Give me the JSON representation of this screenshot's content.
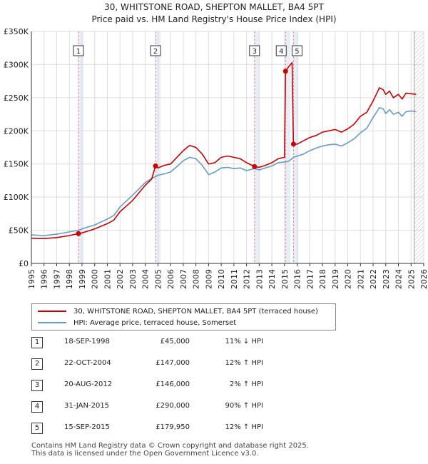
{
  "header": {
    "title": "30, WHITSTONE ROAD, SHEPTON MALLET, BA4 5PT",
    "subtitle": "Price paid vs. HM Land Registry's House Price Index (HPI)"
  },
  "colors": {
    "property": "#cc0000",
    "hpi": "#6699cc",
    "band": "#e8eef7",
    "vline": "#e88a8a",
    "grid": "#dddddd"
  },
  "chart_data": {
    "type": "line",
    "title": "Price paid vs. HM Land Registry's House Price Index (HPI)",
    "xlabel": "",
    "ylabel": "",
    "xlim": [
      1995,
      2026
    ],
    "ylim": [
      0,
      350000
    ],
    "y_ticks": [
      {
        "value": 0,
        "label": "£0"
      },
      {
        "value": 50000,
        "label": "£50K"
      },
      {
        "value": 100000,
        "label": "£100K"
      },
      {
        "value": 150000,
        "label": "£150K"
      },
      {
        "value": 200000,
        "label": "£200K"
      },
      {
        "value": 250000,
        "label": "£250K"
      },
      {
        "value": 300000,
        "label": "£300K"
      },
      {
        "value": 350000,
        "label": "£350K"
      }
    ],
    "x_ticks": [
      "1995",
      "1996",
      "1997",
      "1998",
      "1999",
      "2000",
      "2001",
      "2002",
      "2003",
      "2004",
      "2005",
      "2006",
      "2007",
      "2008",
      "2009",
      "2010",
      "2011",
      "2012",
      "2013",
      "2014",
      "2015",
      "2016",
      "2017",
      "2018",
      "2019",
      "2020",
      "2021",
      "2022",
      "2023",
      "2024",
      "2025",
      "2026"
    ],
    "grid": true,
    "series": [
      {
        "name": "30, WHITSTONE ROAD, SHEPTON MALLET, BA4 5PT (terraced house)",
        "color": "#cc0000",
        "points": [
          [
            1995.0,
            38000
          ],
          [
            1996.0,
            37500
          ],
          [
            1997.0,
            39000
          ],
          [
            1998.0,
            42000
          ],
          [
            1998.72,
            45000
          ],
          [
            1999.0,
            46000
          ],
          [
            2000.0,
            52000
          ],
          [
            2001.0,
            60000
          ],
          [
            2001.5,
            65000
          ],
          [
            2002.0,
            78000
          ],
          [
            2003.0,
            95000
          ],
          [
            2004.0,
            118000
          ],
          [
            2004.5,
            127000
          ],
          [
            2004.81,
            147000
          ],
          [
            2005.0,
            144000
          ],
          [
            2005.5,
            148000
          ],
          [
            2006.0,
            150000
          ],
          [
            2006.5,
            160000
          ],
          [
            2007.0,
            170000
          ],
          [
            2007.5,
            178000
          ],
          [
            2008.0,
            175000
          ],
          [
            2008.5,
            165000
          ],
          [
            2009.0,
            150000
          ],
          [
            2009.5,
            152000
          ],
          [
            2010.0,
            160000
          ],
          [
            2010.5,
            162000
          ],
          [
            2011.0,
            160000
          ],
          [
            2011.5,
            158000
          ],
          [
            2012.0,
            152000
          ],
          [
            2012.63,
            146000
          ],
          [
            2013.0,
            145000
          ],
          [
            2013.5,
            148000
          ],
          [
            2014.0,
            152000
          ],
          [
            2014.5,
            158000
          ],
          [
            2015.0,
            160000
          ],
          [
            2015.08,
            290000
          ],
          [
            2015.3,
            296000
          ],
          [
            2015.6,
            303000
          ],
          [
            2015.7,
            179950
          ],
          [
            2016.0,
            180000
          ],
          [
            2016.5,
            185000
          ],
          [
            2017.0,
            190000
          ],
          [
            2017.5,
            193000
          ],
          [
            2018.0,
            198000
          ],
          [
            2018.5,
            200000
          ],
          [
            2019.0,
            202000
          ],
          [
            2019.5,
            198000
          ],
          [
            2020.0,
            203000
          ],
          [
            2020.5,
            210000
          ],
          [
            2021.0,
            222000
          ],
          [
            2021.5,
            228000
          ],
          [
            2022.0,
            245000
          ],
          [
            2022.5,
            265000
          ],
          [
            2022.8,
            262000
          ],
          [
            2023.0,
            255000
          ],
          [
            2023.3,
            260000
          ],
          [
            2023.6,
            250000
          ],
          [
            2024.0,
            255000
          ],
          [
            2024.3,
            248000
          ],
          [
            2024.6,
            257000
          ],
          [
            2025.0,
            256000
          ],
          [
            2025.4,
            255000
          ]
        ]
      },
      {
        "name": "HPI: Average price, terraced house, Somerset",
        "color": "#6699cc",
        "points": [
          [
            1995.0,
            43000
          ],
          [
            1996.0,
            42000
          ],
          [
            1997.0,
            44000
          ],
          [
            1998.0,
            47500
          ],
          [
            1998.72,
            50000
          ],
          [
            1999.0,
            52000
          ],
          [
            2000.0,
            58000
          ],
          [
            2001.0,
            67000
          ],
          [
            2001.5,
            72000
          ],
          [
            2002.0,
            85000
          ],
          [
            2003.0,
            103000
          ],
          [
            2004.0,
            122000
          ],
          [
            2004.5,
            128000
          ],
          [
            2004.81,
            131000
          ],
          [
            2005.0,
            133000
          ],
          [
            2005.5,
            135000
          ],
          [
            2006.0,
            138000
          ],
          [
            2006.5,
            146000
          ],
          [
            2007.0,
            155000
          ],
          [
            2007.5,
            160000
          ],
          [
            2008.0,
            158000
          ],
          [
            2008.5,
            148000
          ],
          [
            2009.0,
            134000
          ],
          [
            2009.5,
            138000
          ],
          [
            2010.0,
            144000
          ],
          [
            2010.5,
            145000
          ],
          [
            2011.0,
            143000
          ],
          [
            2011.5,
            144000
          ],
          [
            2012.0,
            140000
          ],
          [
            2012.63,
            143000
          ],
          [
            2013.0,
            141000
          ],
          [
            2013.5,
            144000
          ],
          [
            2014.0,
            147000
          ],
          [
            2014.5,
            152000
          ],
          [
            2015.0,
            153000
          ],
          [
            2015.08,
            153000
          ],
          [
            2015.3,
            154000
          ],
          [
            2015.6,
            158000
          ],
          [
            2015.7,
            160000
          ],
          [
            2016.0,
            162000
          ],
          [
            2016.5,
            165000
          ],
          [
            2017.0,
            170000
          ],
          [
            2017.5,
            174000
          ],
          [
            2018.0,
            177000
          ],
          [
            2018.5,
            179000
          ],
          [
            2019.0,
            180000
          ],
          [
            2019.5,
            177000
          ],
          [
            2020.0,
            182000
          ],
          [
            2020.5,
            188000
          ],
          [
            2021.0,
            197000
          ],
          [
            2021.5,
            204000
          ],
          [
            2022.0,
            220000
          ],
          [
            2022.5,
            235000
          ],
          [
            2022.8,
            233000
          ],
          [
            2023.0,
            226000
          ],
          [
            2023.3,
            232000
          ],
          [
            2023.6,
            225000
          ],
          [
            2024.0,
            228000
          ],
          [
            2024.3,
            222000
          ],
          [
            2024.6,
            229000
          ],
          [
            2025.0,
            230000
          ],
          [
            2025.4,
            229000
          ]
        ]
      }
    ],
    "sales": [
      {
        "num": "1",
        "year": 1998.72,
        "price": 45000
      },
      {
        "num": "2",
        "year": 2004.81,
        "price": 147000
      },
      {
        "num": "3",
        "year": 2012.63,
        "price": 146000
      },
      {
        "num": "4",
        "year": 2015.08,
        "price": 290000
      },
      {
        "num": "5",
        "year": 2015.71,
        "price": 179950
      }
    ],
    "forecast_start": 2025.25
  },
  "legend": {
    "property_label": "30, WHITSTONE ROAD, SHEPTON MALLET, BA4 5PT (terraced house)",
    "hpi_label": "HPI: Average price, terraced house, Somerset"
  },
  "table": [
    {
      "num": "1",
      "date": "18-SEP-1998",
      "price": "£45,000",
      "hpi": "11% ↓ HPI"
    },
    {
      "num": "2",
      "date": "22-OCT-2004",
      "price": "£147,000",
      "hpi": "12% ↑ HPI"
    },
    {
      "num": "3",
      "date": "20-AUG-2012",
      "price": "£146,000",
      "hpi": "2% ↑ HPI"
    },
    {
      "num": "4",
      "date": "31-JAN-2015",
      "price": "£290,000",
      "hpi": "90% ↑ HPI"
    },
    {
      "num": "5",
      "date": "15-SEP-2015",
      "price": "£179,950",
      "hpi": "12% ↑ HPI"
    }
  ],
  "footer": {
    "line1": "Contains HM Land Registry data © Crown copyright and database right 2025.",
    "line2": "This data is licensed under the Open Government Licence v3.0."
  }
}
